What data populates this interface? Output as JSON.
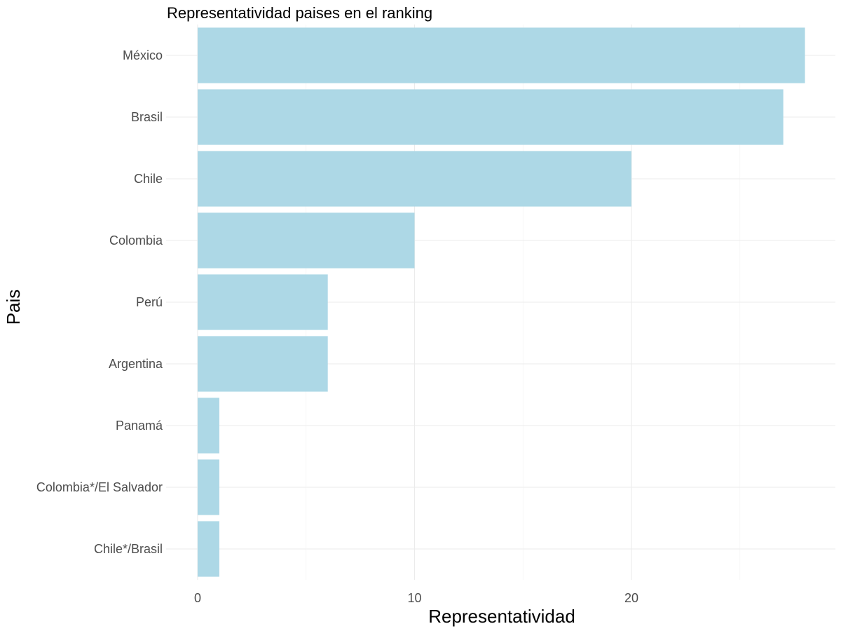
{
  "chart_data": {
    "type": "bar",
    "orientation": "horizontal",
    "title": "Representatividad paises en el ranking",
    "xlabel": "Representatividad",
    "ylabel": "Pais",
    "categories": [
      "México",
      "Brasil",
      "Chile",
      "Colombia",
      "Perú",
      "Argentina",
      "Panamá",
      "Colombia*/El Salvador",
      "Chile*/Brasil"
    ],
    "values": [
      28,
      27,
      20,
      10,
      6,
      6,
      1,
      1,
      1
    ],
    "xlim": [
      0,
      28
    ],
    "xticks": [
      0,
      10,
      20
    ],
    "grid": true,
    "bar_color": "#add8e6"
  }
}
